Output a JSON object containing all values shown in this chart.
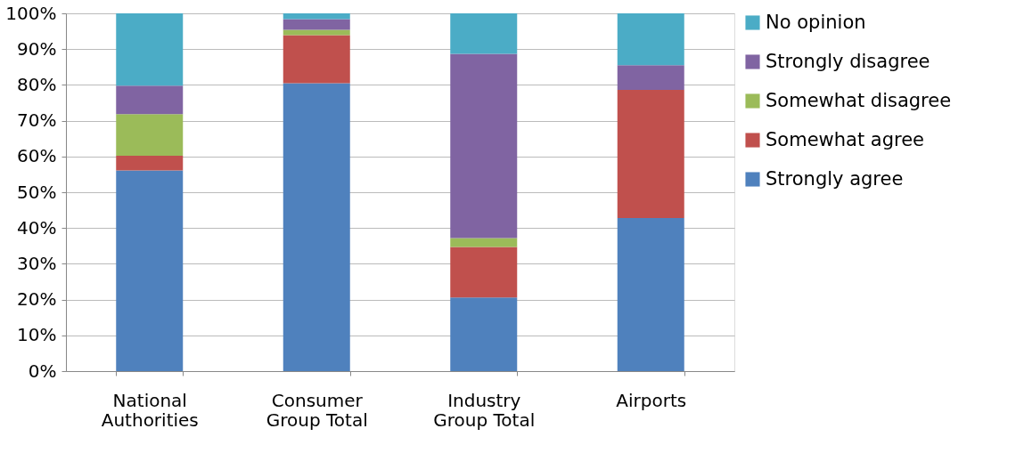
{
  "chart_data": {
    "type": "bar",
    "stacked": true,
    "legend": "right",
    "grid": "y",
    "categories": [
      "National Authorities",
      "Consumer Group Total",
      "Industry Group Total",
      "Airports"
    ],
    "ylim": [
      0,
      100
    ],
    "yticks": [
      {
        "value": 0,
        "label": "0%"
      },
      {
        "value": 10,
        "label": "10%"
      },
      {
        "value": 20,
        "label": "20%"
      },
      {
        "value": 30,
        "label": "30%"
      },
      {
        "value": 40,
        "label": "40%"
      },
      {
        "value": 50,
        "label": "50%"
      },
      {
        "value": 60,
        "label": "60%"
      },
      {
        "value": 70,
        "label": "70%"
      },
      {
        "value": 80,
        "label": "80%"
      },
      {
        "value": 90,
        "label": "90%"
      },
      {
        "value": 100,
        "label": "100%"
      }
    ],
    "series": [
      {
        "name": "Strongly agree",
        "color": "#4f81bd",
        "values": [
          56.1,
          80.5,
          20.6,
          42.8
        ]
      },
      {
        "name": "Somewhat agree",
        "color": "#c0504d",
        "values": [
          4.1,
          13.4,
          14.1,
          35.8
        ]
      },
      {
        "name": "Somewhat disagree",
        "color": "#9bbb59",
        "values": [
          11.6,
          1.5,
          2.5,
          0
        ]
      },
      {
        "name": "Strongly disagree",
        "color": "#8064a2",
        "values": [
          8.0,
          3.0,
          51.5,
          6.9
        ]
      },
      {
        "name": "No opinion",
        "color": "#4bacc6",
        "values": [
          20.2,
          1.6,
          11.3,
          14.5
        ]
      }
    ]
  }
}
